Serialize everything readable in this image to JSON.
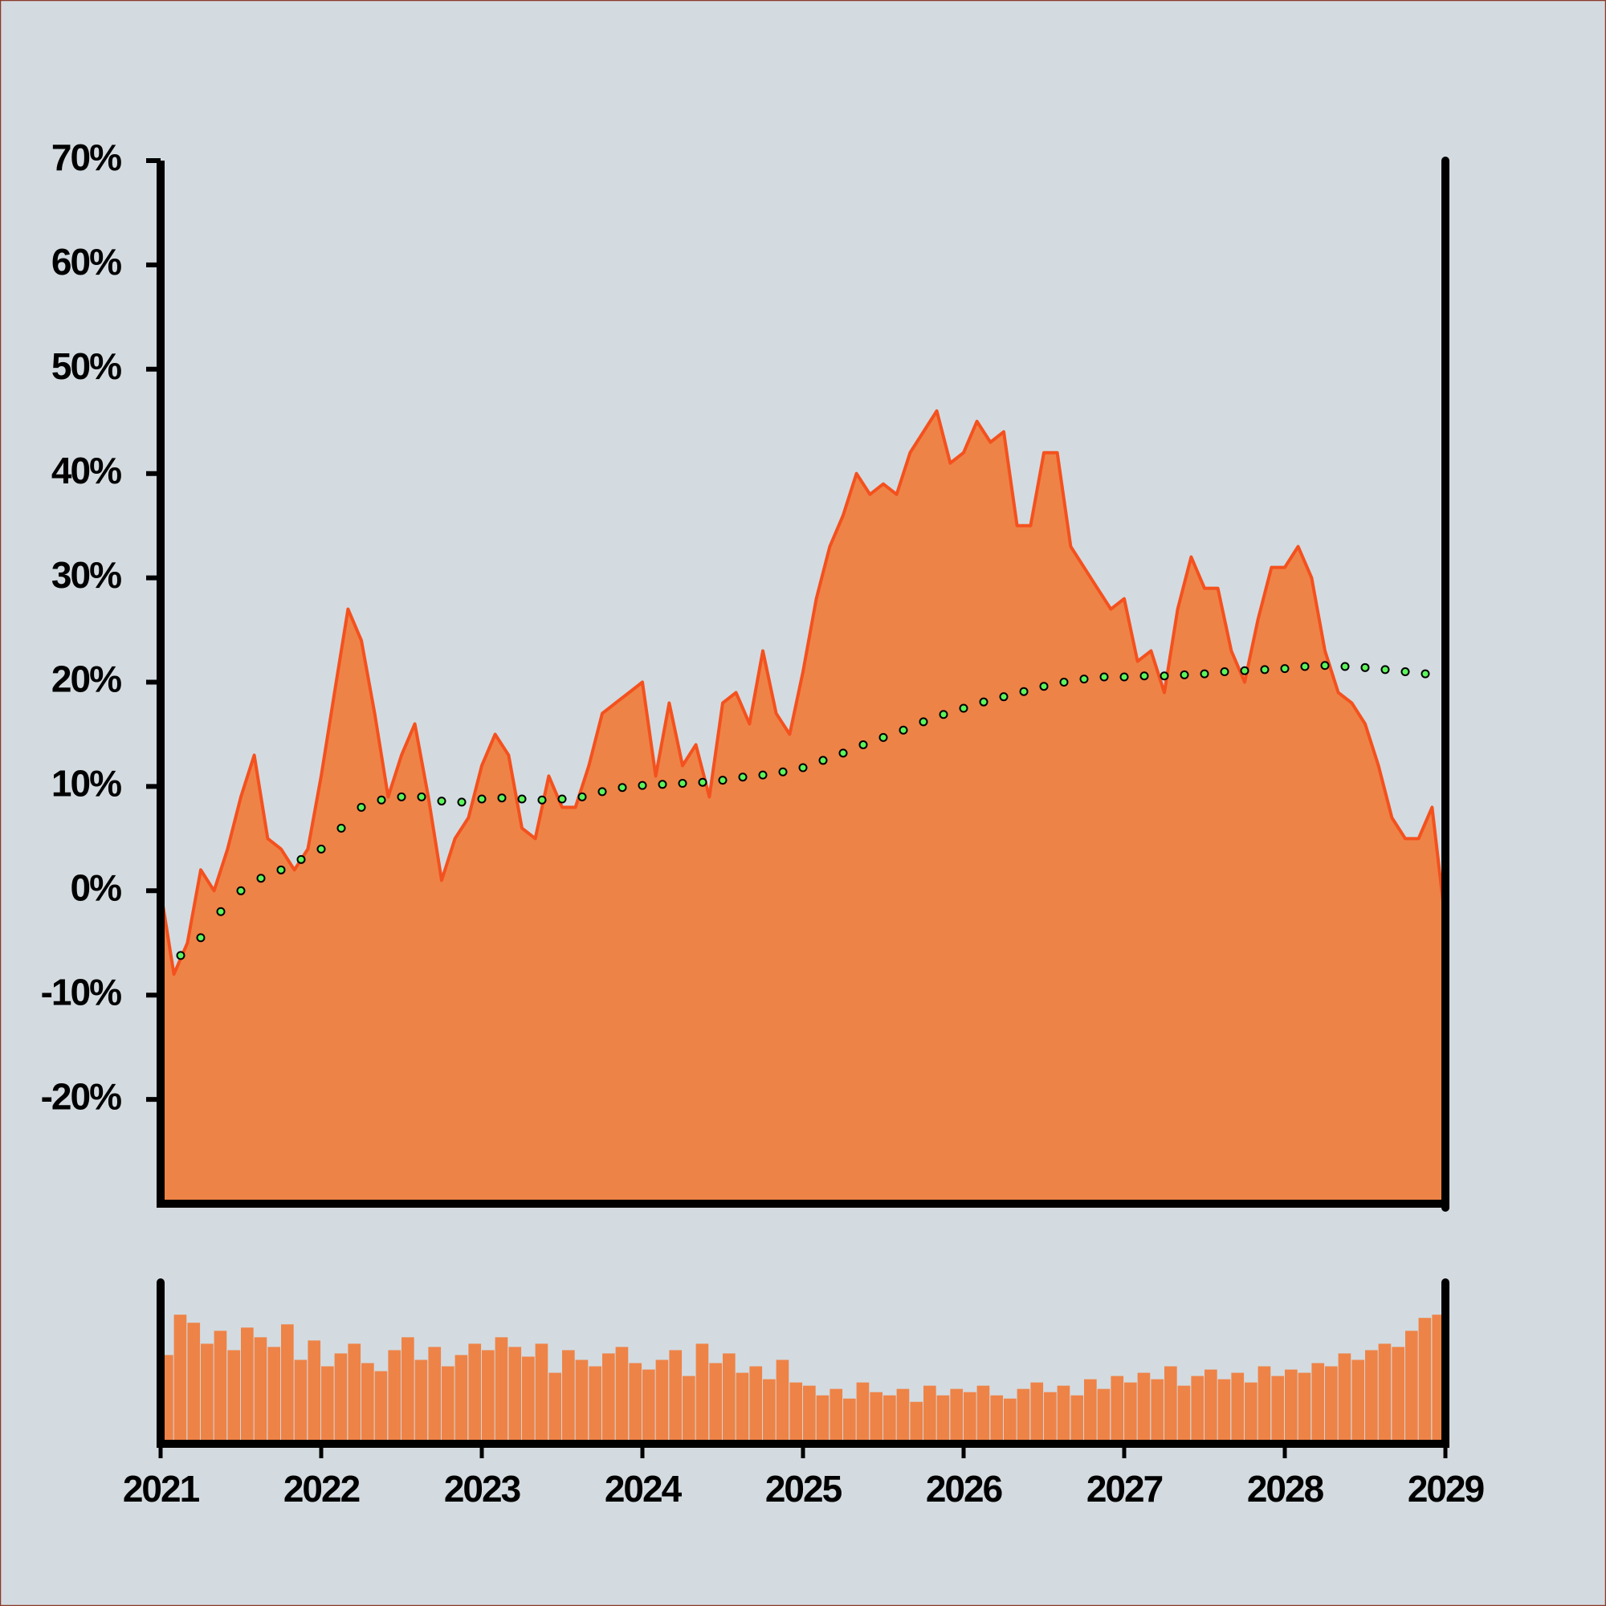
{
  "chart_data": [
    {
      "type": "area",
      "xlim": [
        2021,
        2029
      ],
      "xticks": [
        2021,
        2022,
        2023,
        2024,
        2025,
        2026,
        2027,
        2028,
        2029
      ],
      "ylim": [
        -30,
        70
      ],
      "yticks": [
        {
          "value": -20,
          "label": "-20%"
        },
        {
          "value": -10,
          "label": "-10%"
        },
        {
          "value": 0,
          "label": "0%"
        },
        {
          "value": 10,
          "label": "10%"
        },
        {
          "value": 20,
          "label": "20%"
        },
        {
          "value": 30,
          "label": "30%"
        },
        {
          "value": 40,
          "label": "40%"
        },
        {
          "value": 50,
          "label": "50%"
        },
        {
          "value": 60,
          "label": "60%"
        },
        {
          "value": 70,
          "label": "70%"
        }
      ],
      "series": [
        {
          "kind": "area",
          "color": "#ee8347",
          "line_color": "#f4511e",
          "x": [
            2021,
            2021.083,
            2021.167,
            2021.25,
            2021.333,
            2021.417,
            2021.5,
            2021.583,
            2021.667,
            2021.75,
            2021.833,
            2021.917,
            2022,
            2022.083,
            2022.167,
            2022.25,
            2022.333,
            2022.417,
            2022.5,
            2022.583,
            2022.667,
            2022.75,
            2022.833,
            2022.917,
            2023,
            2023.083,
            2023.167,
            2023.25,
            2023.333,
            2023.417,
            2023.5,
            2023.583,
            2023.667,
            2023.75,
            2023.833,
            2023.917,
            2024,
            2024.083,
            2024.167,
            2024.25,
            2024.333,
            2024.417,
            2024.5,
            2024.583,
            2024.667,
            2024.75,
            2024.833,
            2024.917,
            2025,
            2025.083,
            2025.167,
            2025.25,
            2025.333,
            2025.417,
            2025.5,
            2025.583,
            2025.667,
            2025.75,
            2025.833,
            2025.917,
            2026,
            2026.083,
            2026.167,
            2026.25,
            2026.333,
            2026.417,
            2026.5,
            2026.583,
            2026.667,
            2026.75,
            2026.833,
            2026.917,
            2027,
            2027.083,
            2027.167,
            2027.25,
            2027.333,
            2027.417,
            2027.5,
            2027.583,
            2027.667,
            2027.75,
            2027.833,
            2027.917,
            2028,
            2028.083,
            2028.167,
            2028.25,
            2028.333,
            2028.417,
            2028.5,
            2028.583,
            2028.667,
            2028.75,
            2028.833,
            2028.917,
            2029
          ],
          "values": [
            0,
            -8,
            -5,
            2,
            0,
            4,
            9,
            13,
            5,
            4,
            2,
            4,
            11,
            19,
            27,
            24,
            17,
            9,
            13,
            16,
            9,
            1,
            5,
            7,
            12,
            15,
            13,
            6,
            5,
            11,
            8,
            8,
            12,
            17,
            18,
            19,
            20,
            11,
            18,
            12,
            14,
            9,
            18,
            19,
            16,
            23,
            17,
            15,
            21,
            28,
            33,
            36,
            40,
            38,
            39,
            38,
            42,
            44,
            46,
            41,
            42,
            45,
            43,
            44,
            35,
            35,
            42,
            42,
            33,
            31,
            29,
            27,
            28,
            22,
            23,
            19,
            27,
            32,
            29,
            29,
            23,
            20,
            26,
            31,
            31,
            33,
            30,
            23,
            19,
            18,
            16,
            12,
            7,
            5,
            5,
            8,
            -3
          ]
        },
        {
          "kind": "dots",
          "color": "#5cf55c",
          "x": [
            2021.125,
            2021.25,
            2021.375,
            2021.5,
            2021.625,
            2021.75,
            2021.875,
            2022,
            2022.125,
            2022.25,
            2022.375,
            2022.5,
            2022.625,
            2022.75,
            2022.875,
            2023,
            2023.125,
            2023.25,
            2023.375,
            2023.5,
            2023.625,
            2023.75,
            2023.875,
            2024,
            2024.125,
            2024.25,
            2024.375,
            2024.5,
            2024.625,
            2024.75,
            2024.875,
            2025,
            2025.125,
            2025.25,
            2025.375,
            2025.5,
            2025.625,
            2025.75,
            2025.875,
            2026,
            2026.125,
            2026.25,
            2026.375,
            2026.5,
            2026.625,
            2026.75,
            2026.875,
            2027,
            2027.125,
            2027.25,
            2027.375,
            2027.5,
            2027.625,
            2027.75,
            2027.875,
            2028,
            2028.125,
            2028.25,
            2028.375,
            2028.5,
            2028.625,
            2028.75,
            2028.875
          ],
          "values": [
            -6.2,
            -4.5,
            -2,
            0,
            1.2,
            2,
            3,
            4,
            6,
            8,
            8.7,
            9,
            9,
            8.6,
            8.5,
            8.8,
            8.9,
            8.8,
            8.7,
            8.8,
            9,
            9.5,
            9.9,
            10.1,
            10.2,
            10.3,
            10.4,
            10.6,
            10.9,
            11.1,
            11.4,
            11.8,
            12.5,
            13.2,
            14,
            14.7,
            15.4,
            16.2,
            16.9,
            17.5,
            18.1,
            18.6,
            19.1,
            19.6,
            20,
            20.3,
            20.5,
            20.5,
            20.6,
            20.6,
            20.7,
            20.8,
            21,
            21.1,
            21.2,
            21.3,
            21.5,
            21.6,
            21.5,
            21.4,
            21.2,
            21,
            20.8
          ]
        }
      ]
    },
    {
      "type": "bar",
      "color": "#ee8347",
      "ylim": [
        0,
        100
      ],
      "xlim": [
        2021,
        2029
      ],
      "x": [
        2021,
        2021.083,
        2021.167,
        2021.25,
        2021.333,
        2021.417,
        2021.5,
        2021.583,
        2021.667,
        2021.75,
        2021.833,
        2021.917,
        2022,
        2022.083,
        2022.167,
        2022.25,
        2022.333,
        2022.417,
        2022.5,
        2022.583,
        2022.667,
        2022.75,
        2022.833,
        2022.917,
        2023,
        2023.083,
        2023.167,
        2023.25,
        2023.333,
        2023.417,
        2023.5,
        2023.583,
        2023.667,
        2023.75,
        2023.833,
        2023.917,
        2024,
        2024.083,
        2024.167,
        2024.25,
        2024.333,
        2024.417,
        2024.5,
        2024.583,
        2024.667,
        2024.75,
        2024.833,
        2024.917,
        2025,
        2025.083,
        2025.167,
        2025.25,
        2025.333,
        2025.417,
        2025.5,
        2025.583,
        2025.667,
        2025.75,
        2025.833,
        2025.917,
        2026,
        2026.083,
        2026.167,
        2026.25,
        2026.333,
        2026.417,
        2026.5,
        2026.583,
        2026.667,
        2026.75,
        2026.833,
        2026.917,
        2027,
        2027.083,
        2027.167,
        2027.25,
        2027.333,
        2027.417,
        2027.5,
        2027.583,
        2027.667,
        2027.75,
        2027.833,
        2027.917,
        2028,
        2028.083,
        2028.167,
        2028.25,
        2028.333,
        2028.417,
        2028.5,
        2028.583,
        2028.667,
        2028.75,
        2028.833,
        2028.917
      ],
      "values": [
        55,
        80,
        75,
        62,
        70,
        58,
        72,
        66,
        60,
        74,
        52,
        64,
        48,
        56,
        62,
        50,
        45,
        58,
        66,
        52,
        60,
        48,
        55,
        62,
        58,
        66,
        60,
        54,
        62,
        44,
        58,
        52,
        48,
        56,
        60,
        50,
        46,
        52,
        58,
        42,
        62,
        50,
        56,
        44,
        48,
        40,
        52,
        38,
        36,
        30,
        34,
        28,
        38,
        32,
        30,
        34,
        26,
        36,
        30,
        34,
        32,
        36,
        30,
        28,
        34,
        38,
        32,
        36,
        30,
        40,
        34,
        42,
        38,
        44,
        40,
        48,
        36,
        42,
        46,
        40,
        44,
        38,
        48,
        42,
        46,
        44,
        50,
        48,
        56,
        52,
        58,
        62,
        60,
        70,
        78,
        80
      ]
    }
  ]
}
